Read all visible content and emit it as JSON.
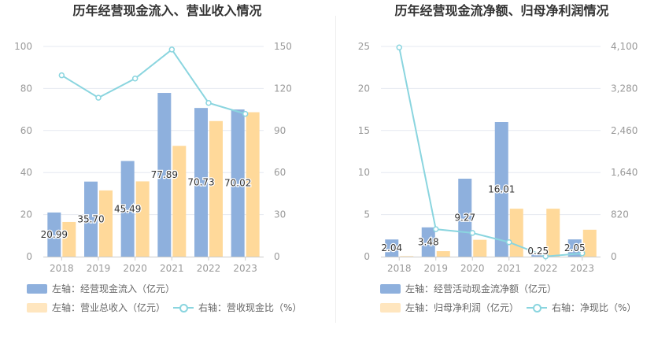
{
  "colors": {
    "bar1": "#8eb0dd",
    "bar2": "#ffd99a",
    "line": "#8ad5df",
    "axis": "#999999",
    "grid": "#e6e9f0"
  },
  "chart_data": [
    {
      "type": "bar",
      "title": "历年经营现金流入、营业收入情况",
      "categories": [
        "2018",
        "2019",
        "2020",
        "2021",
        "2022",
        "2023"
      ],
      "y_left": {
        "range": [
          0,
          100
        ],
        "ticks": [
          "0",
          "20",
          "40",
          "60",
          "80",
          "100"
        ]
      },
      "y_right": {
        "range": [
          0,
          150
        ],
        "ticks": [
          "0",
          "30",
          "60",
          "90",
          "120",
          "150"
        ]
      },
      "series": [
        {
          "name": "左轴：经营现金流入（亿元）",
          "type": "bar",
          "axis": "left",
          "values": [
            20.99,
            35.7,
            45.49,
            77.89,
            70.73,
            70.02
          ],
          "labels": [
            "20.99",
            "35.70",
            "45.49",
            "77.89",
            "70.73",
            "70.02"
          ]
        },
        {
          "name": "左轴：营业总收入（亿元）",
          "type": "bar",
          "axis": "left",
          "values": [
            16.5,
            31.5,
            35.8,
            52.7,
            64.5,
            68.7
          ]
        },
        {
          "name": "右轴：营收现金比（%）",
          "type": "line",
          "axis": "right",
          "values": [
            129.4,
            113.4,
            127.1,
            147.8,
            109.7,
            101.9
          ]
        }
      ],
      "legend_position": "bottom"
    },
    {
      "type": "bar",
      "title": "历年经营现金流净额、归母净利润情况",
      "categories": [
        "2018",
        "2019",
        "2020",
        "2021",
        "2022",
        "2023"
      ],
      "y_left": {
        "range": [
          0,
          25
        ],
        "ticks": [
          "0",
          "5",
          "10",
          "15",
          "20",
          "25"
        ]
      },
      "y_right": {
        "range": [
          0,
          4100
        ],
        "ticks": [
          "0",
          "820",
          "1,640",
          "2,460",
          "3,280",
          "4,100"
        ]
      },
      "series": [
        {
          "name": "左轴：经营活动现金流净额（亿元）",
          "type": "bar",
          "axis": "left",
          "values": [
            2.04,
            3.48,
            9.27,
            16.01,
            0.25,
            2.05
          ],
          "labels": [
            "2.04",
            "3.48",
            "9.27",
            "16.01",
            "0.25",
            "2.05"
          ]
        },
        {
          "name": "左轴：归母净利润（亿元）",
          "type": "bar",
          "axis": "left",
          "values": [
            0.05,
            0.65,
            2.0,
            5.7,
            5.7,
            3.2
          ]
        },
        {
          "name": "右轴：净现比（%）",
          "type": "line",
          "axis": "right",
          "values": [
            4080,
            535,
            463,
            281,
            4.4,
            64
          ]
        }
      ],
      "legend_position": "bottom"
    }
  ]
}
